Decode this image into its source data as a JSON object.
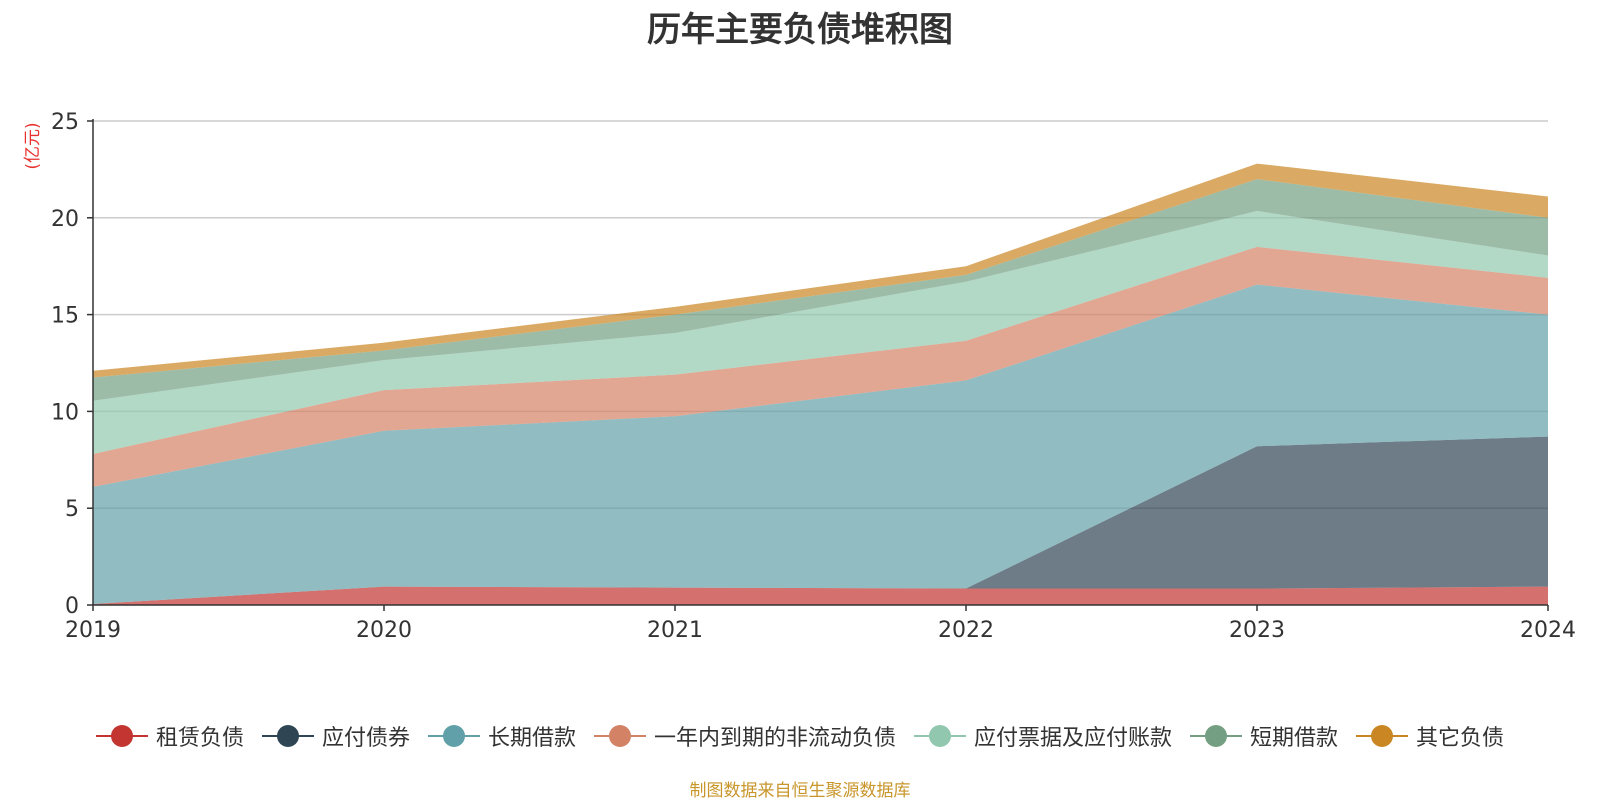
{
  "chart_data": {
    "type": "area",
    "stacked": true,
    "title": "历年主要负债堆积图",
    "ylabel": "(亿元)",
    "xlabel": "",
    "categories": [
      "2019",
      "2020",
      "2021",
      "2022",
      "2023",
      "2024"
    ],
    "ylim": [
      0,
      25
    ],
    "yticks": [
      0,
      5,
      10,
      15,
      20,
      25
    ],
    "grid": true,
    "legend_position": "bottom",
    "series": [
      {
        "name": "租赁负债",
        "color": "#c23531",
        "values": [
          0.05,
          0.95,
          0.9,
          0.85,
          0.85,
          0.95
        ]
      },
      {
        "name": "应付债券",
        "color": "#2f4554",
        "values": [
          0,
          0,
          0,
          0,
          7.35,
          7.75
        ]
      },
      {
        "name": "长期借款",
        "color": "#61a0a8",
        "values": [
          6.05,
          8.05,
          8.85,
          10.75,
          8.35,
          6.3
        ]
      },
      {
        "name": "一年内到期的非流动负债",
        "color": "#d48265",
        "values": [
          1.7,
          2.1,
          2.15,
          2.05,
          1.95,
          1.9
        ]
      },
      {
        "name": "应付票据及应付账款",
        "color": "#91c7ae",
        "values": [
          2.75,
          1.55,
          2.15,
          3.05,
          1.85,
          1.15
        ]
      },
      {
        "name": "短期借款",
        "color": "#749f83",
        "values": [
          1.2,
          0.5,
          0.95,
          0.35,
          1.65,
          1.95
        ]
      },
      {
        "name": "其它负债",
        "color": "#ca8622",
        "values": [
          0.35,
          0.4,
          0.4,
          0.45,
          0.8,
          1.1
        ]
      }
    ]
  },
  "source_note": "制图数据来自恒生聚源数据库",
  "source_note_color": "#c8962b",
  "ylabel_color": "#e8312d"
}
